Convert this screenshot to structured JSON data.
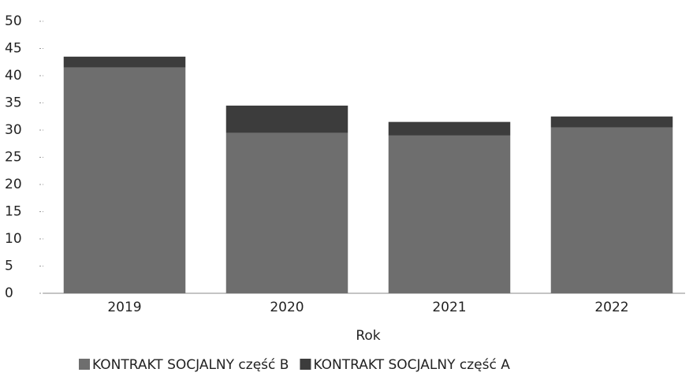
{
  "chart_data": {
    "type": "stacked_bar",
    "x_label": "Rok",
    "categories": [
      "2019",
      "2020",
      "2021",
      "2022"
    ],
    "series": [
      {
        "name": "KONTRAKT SOCJALNY część B",
        "color": "#6e6e6e",
        "values": [
          41.5,
          29.5,
          29,
          30.5
        ]
      },
      {
        "name": "KONTRAKT SOCJALNY część A",
        "color": "#3c3c3c",
        "values": [
          2,
          5,
          2.5,
          2
        ]
      }
    ],
    "ylim": [
      0,
      50
    ],
    "yticks": [
      0,
      5,
      10,
      15,
      20,
      25,
      30,
      35,
      40,
      45,
      50
    ],
    "grid": false,
    "legend": "bottom"
  }
}
